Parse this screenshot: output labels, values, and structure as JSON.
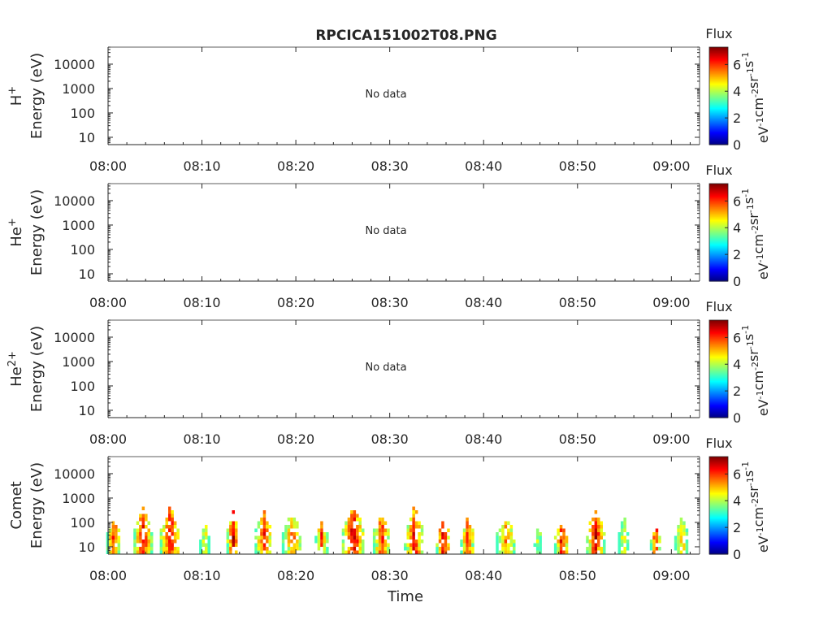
{
  "title": "RPCICA151002T08.PNG",
  "xlabel": "Time",
  "colorbar": {
    "title": "Flux",
    "label": "eV-1cm-2sr-1s-1",
    "ticks": [
      0,
      2,
      4,
      6
    ],
    "range": [
      0,
      7.3
    ],
    "colormap": "jet"
  },
  "chart_data": [
    {
      "type": "heatmap",
      "panel": "H+",
      "ylabel_species": "H+",
      "ylabel_unit": "Energy (eV)",
      "yscale": "log",
      "yticks": [
        "10",
        "100",
        "1000",
        "10000"
      ],
      "ylim": [
        5,
        50000
      ],
      "xticks": [
        "08:00",
        "08:10",
        "08:20",
        "08:30",
        "08:40",
        "08:50",
        "09:00"
      ],
      "xlim_minutes": [
        0,
        63
      ],
      "annotation": "No data",
      "cells": []
    },
    {
      "type": "heatmap",
      "panel": "He+",
      "ylabel_species": "He+",
      "ylabel_unit": "Energy (eV)",
      "yscale": "log",
      "yticks": [
        "10",
        "100",
        "1000",
        "10000"
      ],
      "ylim": [
        5,
        50000
      ],
      "xticks": [
        "08:00",
        "08:10",
        "08:20",
        "08:30",
        "08:40",
        "08:50",
        "09:00"
      ],
      "xlim_minutes": [
        0,
        63
      ],
      "annotation": "No data",
      "cells": []
    },
    {
      "type": "heatmap",
      "panel": "He2+",
      "ylabel_species": "He2+",
      "ylabel_unit": "Energy (eV)",
      "yscale": "log",
      "yticks": [
        "10",
        "100",
        "1000",
        "10000"
      ],
      "ylim": [
        5,
        50000
      ],
      "xticks": [
        "08:00",
        "08:10",
        "08:20",
        "08:30",
        "08:40",
        "08:50",
        "09:00"
      ],
      "xlim_minutes": [
        0,
        63
      ],
      "annotation": "No data",
      "cells": []
    },
    {
      "type": "heatmap",
      "panel": "Comet",
      "ylabel_species": "Comet",
      "ylabel_unit": "Energy (eV)",
      "yscale": "log",
      "yticks": [
        "10",
        "100",
        "1000",
        "10000"
      ],
      "ylim": [
        5,
        50000
      ],
      "xticks": [
        "08:00",
        "08:10",
        "08:20",
        "08:30",
        "08:40",
        "08:50",
        "09:00"
      ],
      "xlim_minutes": [
        0,
        63
      ],
      "annotation": "",
      "bursts": [
        {
          "t": 0.5,
          "w": 1.4,
          "emax": 180,
          "peak": 6.4
        },
        {
          "t": 3.6,
          "w": 1.8,
          "emax": 500,
          "peak": 6.8
        },
        {
          "t": 6.5,
          "w": 2.0,
          "emax": 500,
          "peak": 6.9
        },
        {
          "t": 10.2,
          "w": 1.0,
          "emax": 120,
          "peak": 4.8
        },
        {
          "t": 13.2,
          "w": 1.2,
          "emax": 300,
          "peak": 7.0
        },
        {
          "t": 16.5,
          "w": 1.8,
          "emax": 400,
          "peak": 6.3
        },
        {
          "t": 19.5,
          "w": 2.0,
          "emax": 300,
          "peak": 5.8
        },
        {
          "t": 22.6,
          "w": 1.2,
          "emax": 250,
          "peak": 6.0
        },
        {
          "t": 26.0,
          "w": 2.2,
          "emax": 600,
          "peak": 7.0
        },
        {
          "t": 29.0,
          "w": 1.6,
          "emax": 300,
          "peak": 6.5
        },
        {
          "t": 32.5,
          "w": 2.0,
          "emax": 500,
          "peak": 6.6
        },
        {
          "t": 35.6,
          "w": 1.4,
          "emax": 150,
          "peak": 7.0
        },
        {
          "t": 38.2,
          "w": 1.4,
          "emax": 200,
          "peak": 6.2
        },
        {
          "t": 42.3,
          "w": 2.0,
          "emax": 200,
          "peak": 5.8
        },
        {
          "t": 45.7,
          "w": 0.8,
          "emax": 100,
          "peak": 4.5
        },
        {
          "t": 48.2,
          "w": 1.4,
          "emax": 120,
          "peak": 6.6
        },
        {
          "t": 51.8,
          "w": 1.8,
          "emax": 450,
          "peak": 6.8
        },
        {
          "t": 54.8,
          "w": 1.0,
          "emax": 250,
          "peak": 5.0
        },
        {
          "t": 58.2,
          "w": 1.0,
          "emax": 120,
          "peak": 6.5
        },
        {
          "t": 61.0,
          "w": 1.4,
          "emax": 250,
          "peak": 5.5
        }
      ]
    }
  ]
}
